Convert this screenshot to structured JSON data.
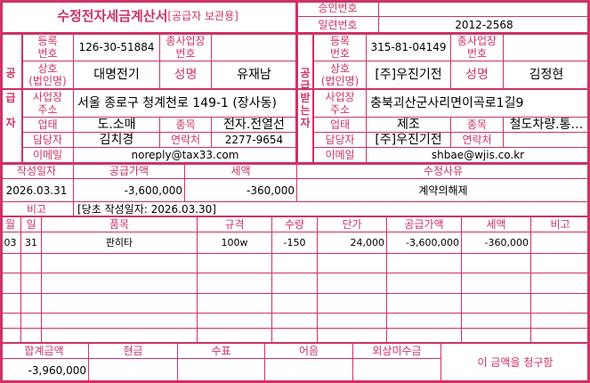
{
  "header": {
    "title": "수정전자세금계산서",
    "subtitle": "[공급자 보관용]",
    "approval_label": "승인번호",
    "approval_value": "",
    "serial_label": "일련번호",
    "serial_value": "2012-2568"
  },
  "supplier": {
    "section_label": "공\n\n급\n\n자",
    "reg_label": "등록\n번호",
    "reg_value": "126-30-51884",
    "sub_label": "종사업장\n번호",
    "sub_value": "",
    "name_label": "상호\n(법인명)",
    "name_value": "대명전기",
    "rep_label": "성명",
    "rep_value": "유재남",
    "addr_label": "사업장\n주소",
    "addr_value": "서울 종로구 청계천로 149-1 (장사동)",
    "biz_label": "업태",
    "biz_value": "도.소매",
    "item_label": "종목",
    "item_value": "전자.전열선",
    "contact_label": "담당자",
    "contact_value": "김치경",
    "phone_label": "연락처",
    "phone_value": "2277-9654",
    "email_label": "이메일",
    "email_value": "noreply@tax33.com"
  },
  "recipient": {
    "section_label": "공\n급\n받\n는\n자",
    "reg_label": "등록\n번호",
    "reg_value": "315-81-04149",
    "sub_label": "종사업장\n번호",
    "sub_value": "",
    "name_label": "상호\n(법인명)",
    "name_value": "[주]우진기전",
    "rep_label": "성명",
    "rep_value": "김정현",
    "addr_label": "사업장\n주소",
    "addr_value": "충북괴산군사리면이곡로1길9",
    "biz_label": "업태",
    "biz_value": "제조",
    "item_label": "종목",
    "item_value": "철도차량.통…",
    "contact_label": "담당자",
    "contact_value": "[주]우진기전",
    "phone_label": "연락처",
    "phone_value": "",
    "email_label": "이메일",
    "email_value": "shbae@wjis.co.kr"
  },
  "summary": {
    "date_label": "작성일자",
    "date_value": "2026.03.31",
    "supply_label": "공급가액",
    "supply_value": "-3,600,000",
    "tax_label": "세액",
    "tax_value": "-360,000",
    "reason_label": "수정사유",
    "reason_value": "계약의해제",
    "note_label": "비고",
    "note_value": "[당초 작성일자: 2026.03.30]"
  },
  "items": {
    "columns": [
      "월",
      "일",
      "품목",
      "규격",
      "수량",
      "단가",
      "공급가액",
      "세액",
      "비고"
    ],
    "rows": [
      [
        "03",
        "31",
        "판히타",
        "100w",
        "-150",
        "24,000",
        "-3,600,000",
        "-360,000",
        ""
      ]
    ]
  },
  "footer": {
    "total_label": "합계금액",
    "total_value": "-3,960,000",
    "cash_label": "현금",
    "cash_value": "",
    "check_label": "수표",
    "check_value": "",
    "note_label": "어음",
    "note_value": "",
    "credit_label": "외상미수금",
    "credit_value": "",
    "claim_text": "이 금액을 청구함"
  }
}
